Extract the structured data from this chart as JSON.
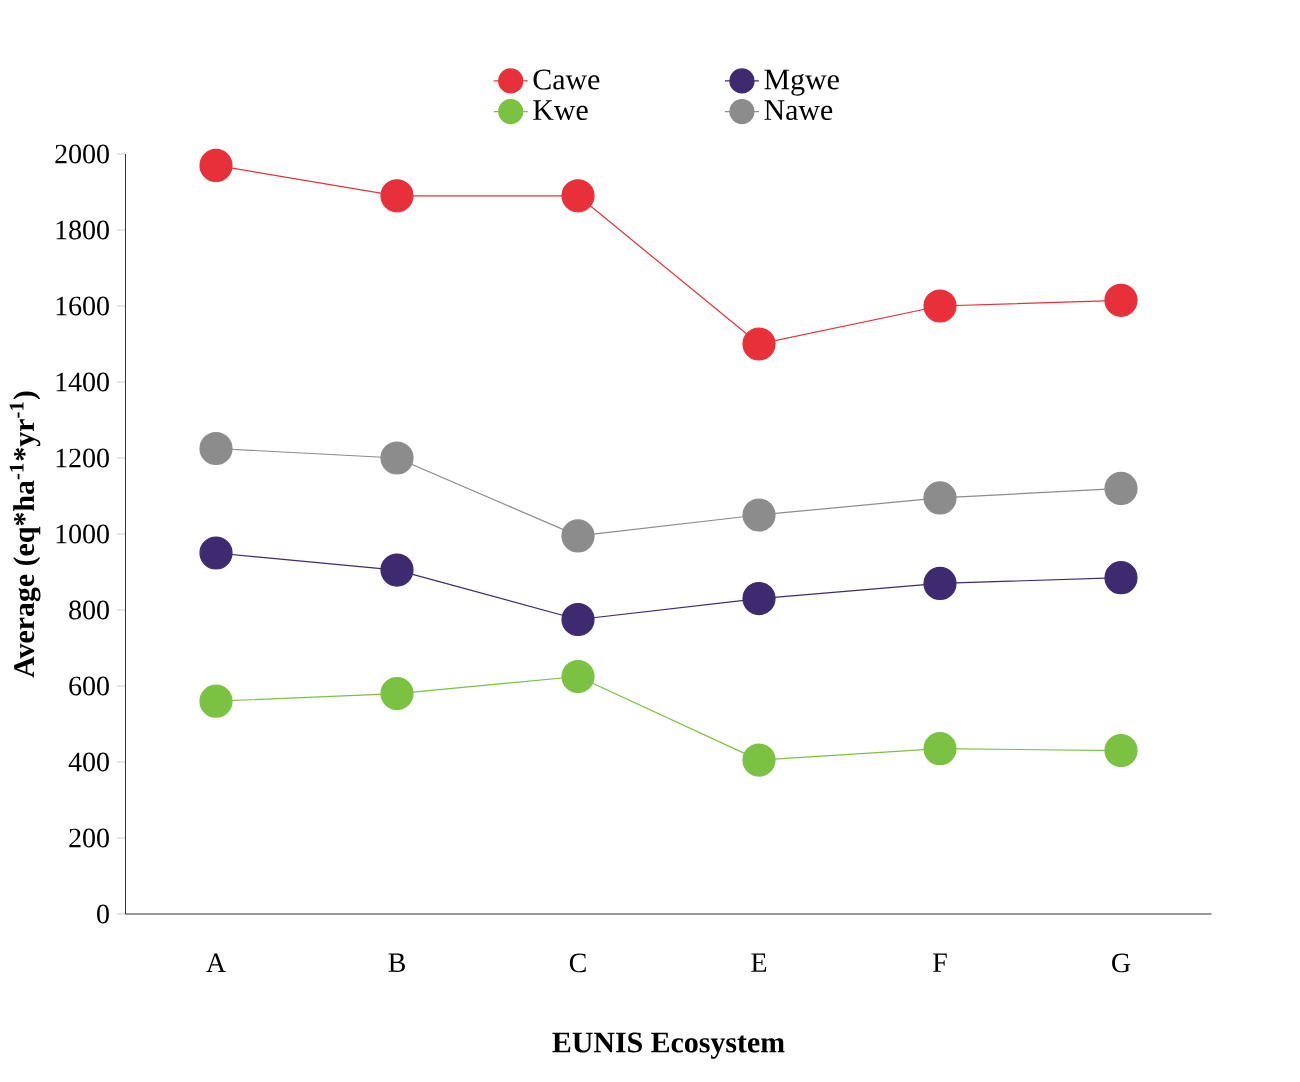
{
  "chart_data": {
    "type": "line",
    "xlabel": "EUNIS Ecosystem",
    "ylabel": "Average (eq*ha$^{-1}$*yr$^{-1}$)",
    "categories": [
      "A",
      "B",
      "C",
      "E",
      "F",
      "G"
    ],
    "series": [
      {
        "name": "Cawe",
        "color": "#e8303a",
        "values": [
          1970,
          1890,
          1890,
          1500,
          1600,
          1615
        ]
      },
      {
        "name": "Mgwe",
        "color": "#3e2a6e",
        "values": [
          950,
          905,
          775,
          830,
          870,
          885
        ]
      },
      {
        "name": "Kwe",
        "color": "#7cc242",
        "values": [
          560,
          580,
          625,
          405,
          435,
          430
        ]
      },
      {
        "name": "Nawe",
        "color": "#8c8c8c",
        "values": [
          1225,
          1200,
          995,
          1050,
          1095,
          1120
        ]
      }
    ],
    "ylim": [
      0,
      2000
    ],
    "yticks": [
      0,
      200,
      400,
      600,
      800,
      1000,
      1200,
      1400,
      1600,
      1800,
      2000
    ],
    "legend": "top",
    "marker": "circle",
    "line_style": "solid",
    "grid": false
  }
}
